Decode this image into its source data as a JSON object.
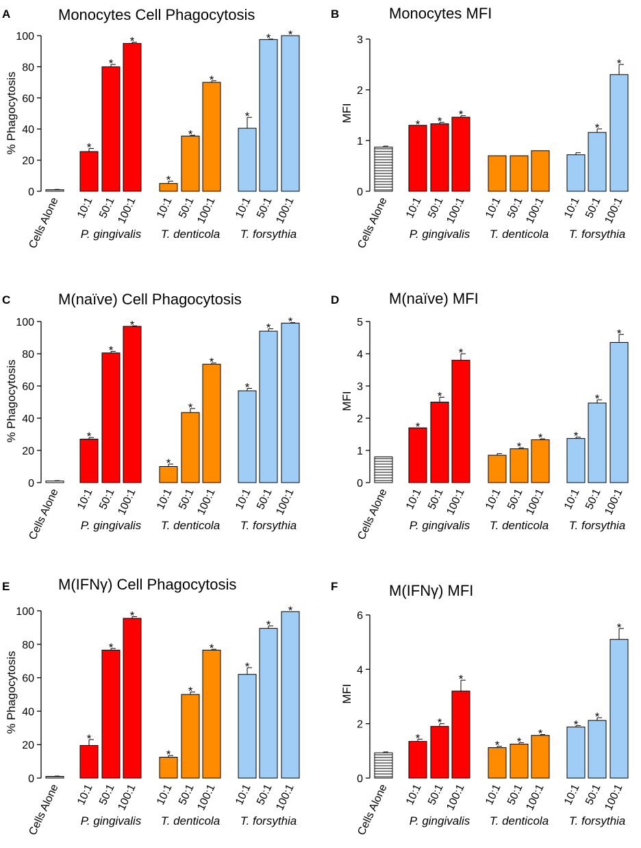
{
  "categories": [
    "Cells Alone",
    "10:1",
    "50:1",
    "100:1",
    "10:1",
    "50:1",
    "100:1",
    "10:1",
    "50:1",
    "100:1"
  ],
  "groups": [
    "P. gingivalis",
    "T. denticola",
    "T. forsythia"
  ],
  "colors": {
    "control": "#ffffff",
    "p_gingivalis": "#ff0000",
    "t_denticola": "#ff8c00",
    "t_forsythia": "#9fcdf5",
    "outline": "#000000"
  },
  "chart_data": [
    {
      "id": "A",
      "letter": "A",
      "type": "bar",
      "title": "Monocytes Cell Phagocytosis",
      "ylabel": "% Phagocytosis",
      "ylim": [
        0,
        100
      ],
      "yticks": [
        "0",
        "20",
        "40",
        "60",
        "80",
        "100"
      ],
      "values": [
        1,
        25.5,
        80,
        95,
        5,
        35.5,
        70,
        40.5,
        97.5,
        100
      ],
      "errors": [
        0.2,
        2,
        1.5,
        0.8,
        1.5,
        0.5,
        1,
        7,
        0.3,
        0
      ],
      "significant": [
        false,
        true,
        true,
        true,
        true,
        true,
        true,
        true,
        true,
        true
      ]
    },
    {
      "id": "B",
      "letter": "B",
      "type": "bar",
      "title": "Monocytes MFI",
      "ylabel": "MFI",
      "ylim": [
        0,
        3
      ],
      "yticks": [
        "0",
        "1",
        "2",
        "3"
      ],
      "values": [
        0.87,
        1.3,
        1.33,
        1.46,
        0.7,
        0.7,
        0.8,
        0.72,
        1.16,
        2.3
      ],
      "errors": [
        0.02,
        0,
        0.03,
        0.03,
        0,
        0,
        0,
        0.04,
        0.07,
        0.2
      ],
      "significant": [
        false,
        true,
        true,
        true,
        false,
        false,
        false,
        false,
        true,
        true
      ]
    },
    {
      "id": "C",
      "letter": "C",
      "type": "bar",
      "title": "M(naïve) Cell Phagocytosis",
      "ylabel": "% Phagocytosis",
      "ylim": [
        0,
        100
      ],
      "yticks": [
        "0",
        "20",
        "40",
        "60",
        "80",
        "100"
      ],
      "values": [
        1,
        27,
        80.5,
        97,
        10,
        43.5,
        73.5,
        57,
        94,
        99
      ],
      "errors": [
        0.2,
        1,
        1,
        0.3,
        1.5,
        2.5,
        0.8,
        1.5,
        1.5,
        0.3
      ],
      "significant": [
        false,
        true,
        true,
        true,
        true,
        true,
        true,
        true,
        true,
        true
      ]
    },
    {
      "id": "D",
      "letter": "D",
      "type": "bar",
      "title": "M(naïve) MFI",
      "ylabel": "MFI",
      "ylim": [
        0,
        5
      ],
      "yticks": [
        "0",
        "1",
        "2",
        "3",
        "4",
        "5"
      ],
      "values": [
        0.8,
        1.7,
        2.5,
        3.8,
        0.85,
        1.05,
        1.33,
        1.37,
        2.47,
        4.35
      ],
      "errors": [
        0,
        0,
        0.15,
        0.2,
        0.05,
        0.03,
        0.03,
        0.04,
        0.1,
        0.25
      ],
      "significant": [
        false,
        true,
        true,
        true,
        false,
        true,
        true,
        true,
        true,
        true
      ]
    },
    {
      "id": "E",
      "letter": "E",
      "type": "bar",
      "title": "M(IFNγ) Cell Phagocytosis",
      "ylabel": "% Phagocytosis",
      "ylim": [
        0,
        100
      ],
      "yticks": [
        "0",
        "20",
        "40",
        "60",
        "80",
        "100"
      ],
      "values": [
        1,
        19.5,
        76.5,
        95.5,
        12.5,
        50,
        76.5,
        62,
        89.5,
        99.5
      ],
      "errors": [
        0.2,
        3.5,
        1,
        1,
        1,
        1.5,
        0.5,
        4,
        1.5,
        0
      ],
      "significant": [
        false,
        true,
        true,
        true,
        true,
        true,
        true,
        true,
        true,
        true
      ]
    },
    {
      "id": "F",
      "letter": "F",
      "type": "bar",
      "title": "M(IFNγ) MFI",
      "ylabel": "MFI",
      "ylim": [
        0,
        6
      ],
      "yticks": [
        "0",
        "2",
        "4",
        "6"
      ],
      "values": [
        0.93,
        1.35,
        1.9,
        3.2,
        1.12,
        1.25,
        1.57,
        1.88,
        2.12,
        5.1
      ],
      "errors": [
        0.03,
        0.08,
        0.1,
        0.4,
        0.05,
        0.05,
        0.03,
        0.05,
        0.1,
        0.4
      ],
      "significant": [
        false,
        true,
        true,
        true,
        true,
        true,
        true,
        true,
        true,
        true
      ]
    }
  ]
}
